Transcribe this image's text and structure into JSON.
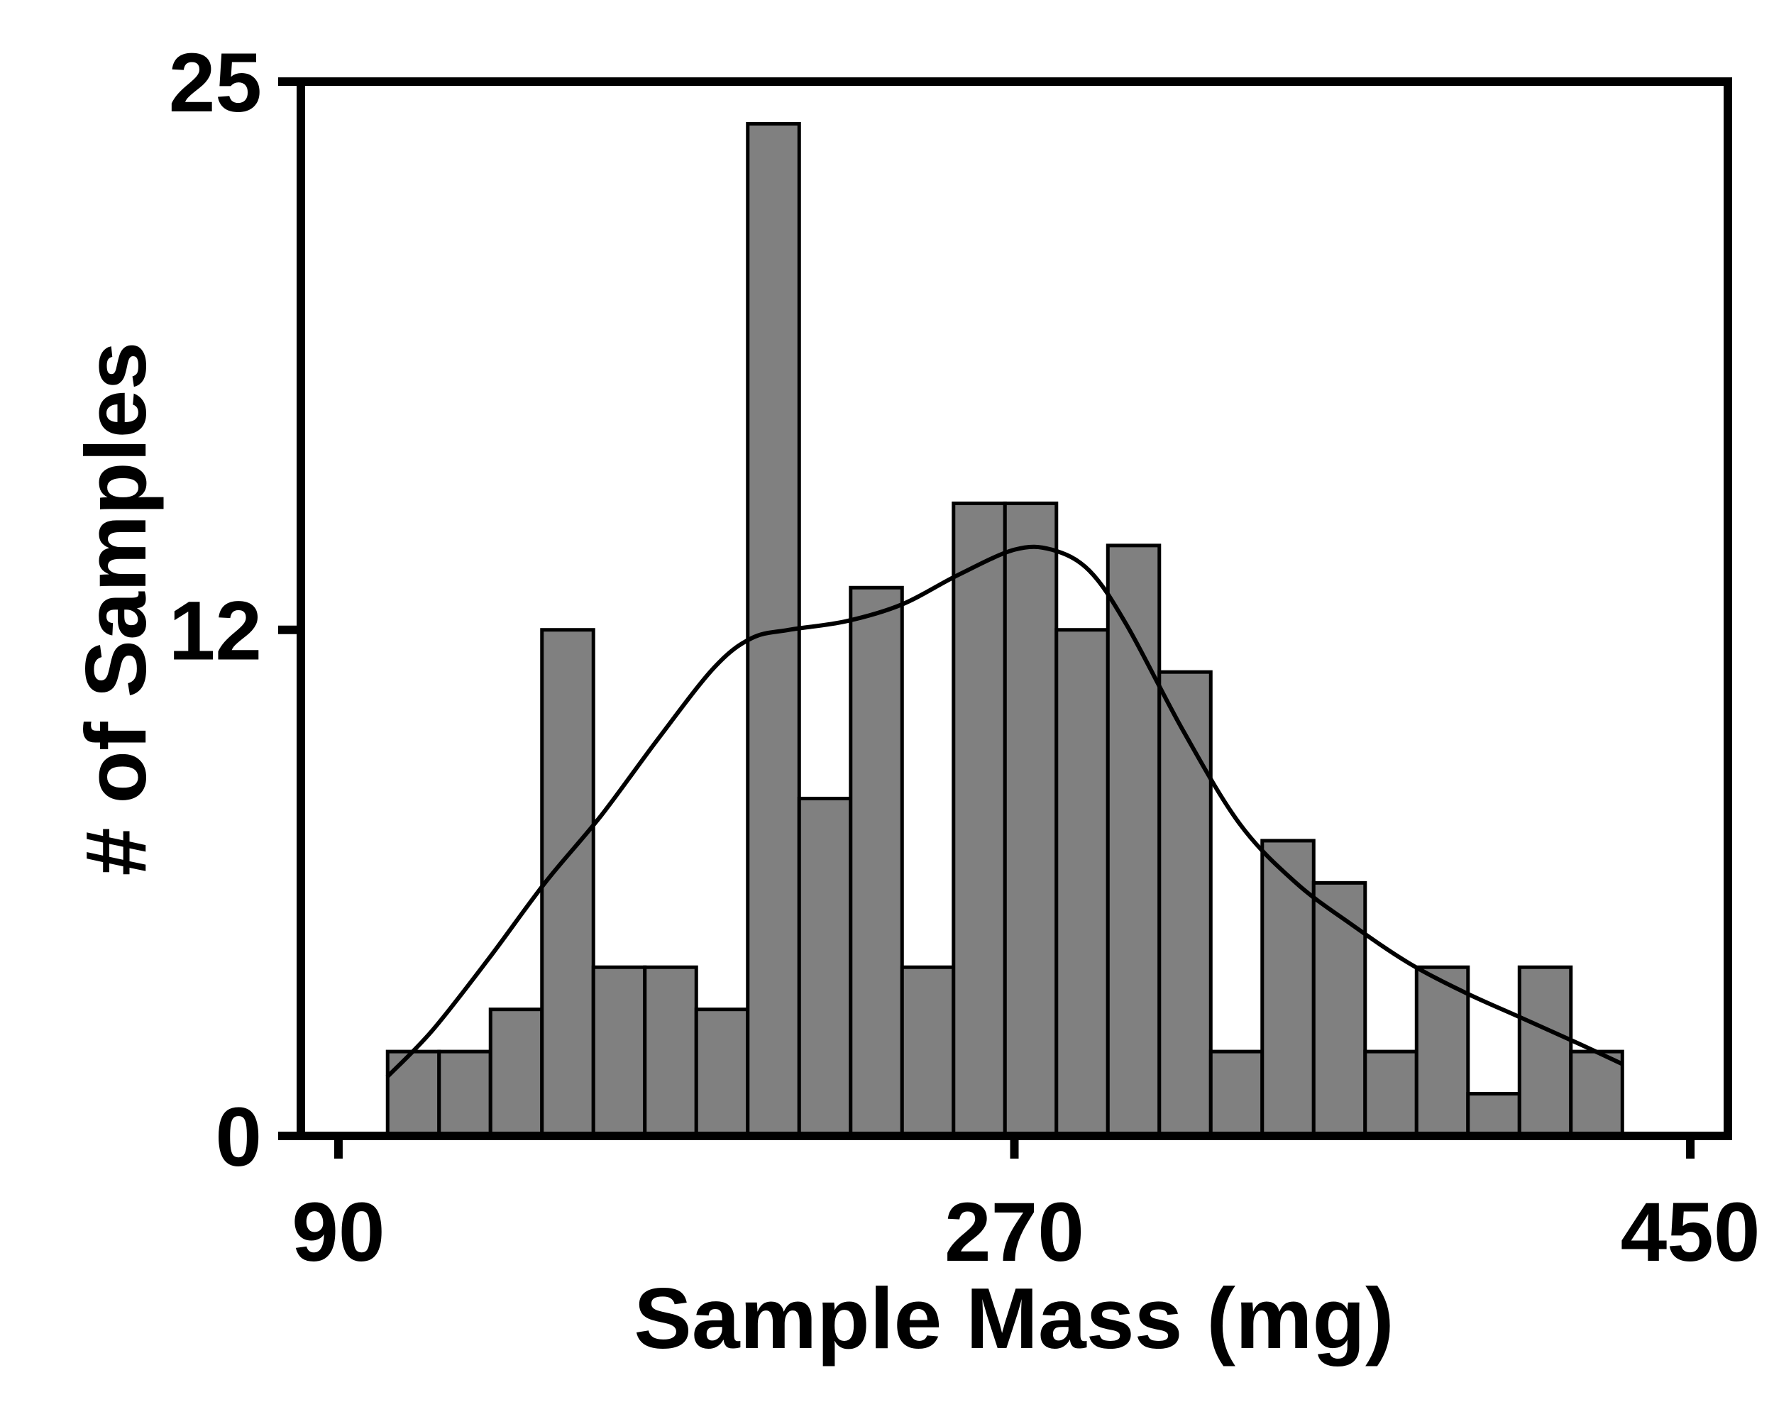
{
  "chart_data": {
    "type": "bar",
    "title": "",
    "xlabel": "Sample Mass (mg)",
    "ylabel": "# of Samples",
    "xlim": [
      80,
      460
    ],
    "ylim": [
      0,
      25
    ],
    "xticks": [
      90,
      270,
      450
    ],
    "yticks": [
      0,
      12,
      25
    ],
    "xtick_labels": [
      "90",
      "270",
      "450"
    ],
    "ytick_labels": [
      "0",
      "12",
      "25"
    ],
    "bin_width": 13.7,
    "bins_start": [
      103.1,
      116.8,
      130.5,
      144.2,
      157.9,
      171.6,
      185.3,
      199.0,
      212.7,
      226.4,
      240.1,
      253.8,
      267.5,
      281.2,
      294.9,
      308.6,
      322.3,
      336.0,
      349.7,
      363.4,
      377.1,
      390.8,
      404.5,
      418.2
    ],
    "values": [
      2,
      2,
      3,
      12,
      4,
      4,
      3,
      24,
      8,
      13,
      4,
      15,
      15,
      12,
      14,
      11,
      2,
      7,
      6,
      2,
      4,
      1,
      4,
      2
    ],
    "kde": {
      "x": [
        103,
        115,
        130,
        145,
        160,
        175,
        190,
        200,
        210,
        225,
        240,
        255,
        270,
        280,
        290,
        300,
        315,
        330,
        345,
        360,
        375,
        390,
        405,
        420,
        432
      ],
      "y": [
        1.4,
        2.5,
        4.2,
        6.0,
        7.6,
        9.4,
        11.1,
        11.8,
        12.0,
        12.2,
        12.6,
        13.3,
        13.9,
        13.9,
        13.4,
        12.1,
        9.6,
        7.4,
        6.0,
        5.0,
        4.1,
        3.4,
        2.8,
        2.2,
        1.7
      ]
    },
    "bar_color": "#808080",
    "edge_color": "#000000",
    "kde_color": "#000000",
    "grid": false,
    "legend": "none"
  }
}
